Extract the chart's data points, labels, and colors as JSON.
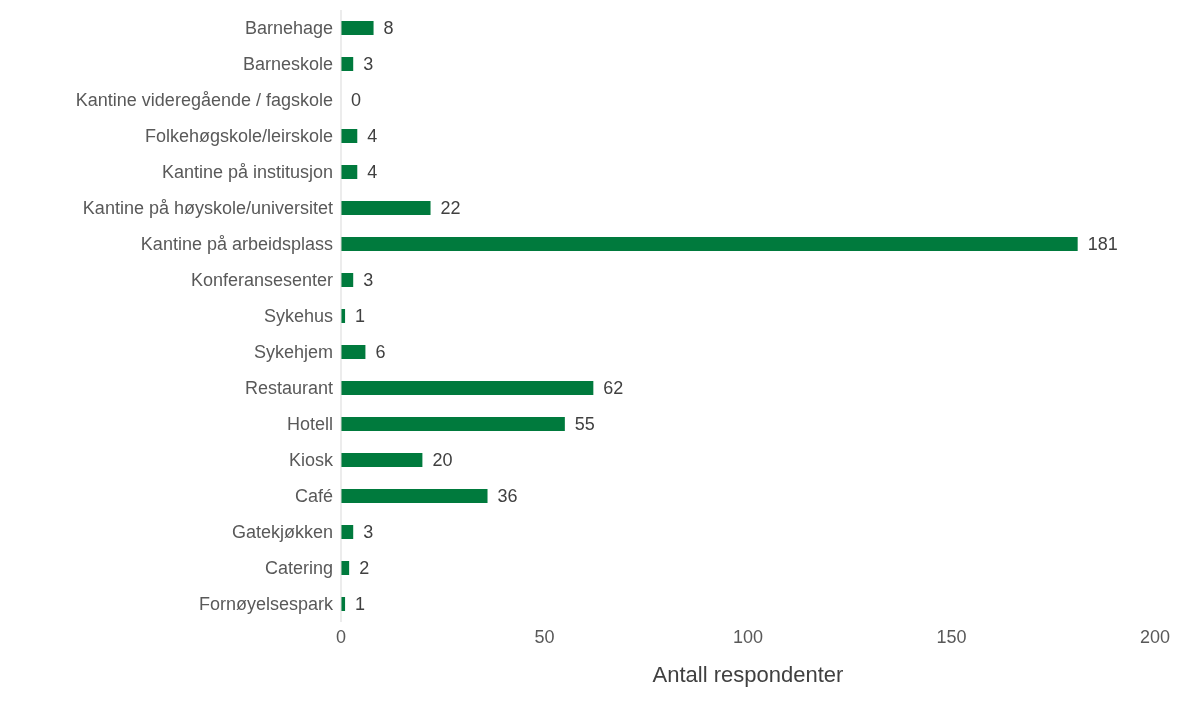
{
  "chart_data": {
    "type": "bar",
    "orientation": "horizontal",
    "xlabel": "Antall respondenter",
    "categories": [
      "Barnehage",
      "Barneskole",
      "Kantine videregående / fagskole",
      "Folkehøgskole/leirskole",
      "Kantine på institusjon",
      "Kantine på høyskole/universitet",
      "Kantine på arbeidsplass",
      "Konferansesenter",
      "Sykehus",
      "Sykehjem",
      "Restaurant",
      "Hotell",
      "Kiosk",
      "Café",
      "Gatekjøkken",
      "Catering",
      "Fornøyelsespark"
    ],
    "values": [
      8,
      3,
      0,
      4,
      4,
      22,
      181,
      3,
      1,
      6,
      62,
      55,
      20,
      36,
      3,
      2,
      1
    ],
    "color": "#007a3d",
    "xlim": [
      0,
      200
    ],
    "xticks": [
      0,
      50,
      100,
      150,
      200
    ],
    "data_labels": true,
    "grid": false,
    "legend": false
  }
}
